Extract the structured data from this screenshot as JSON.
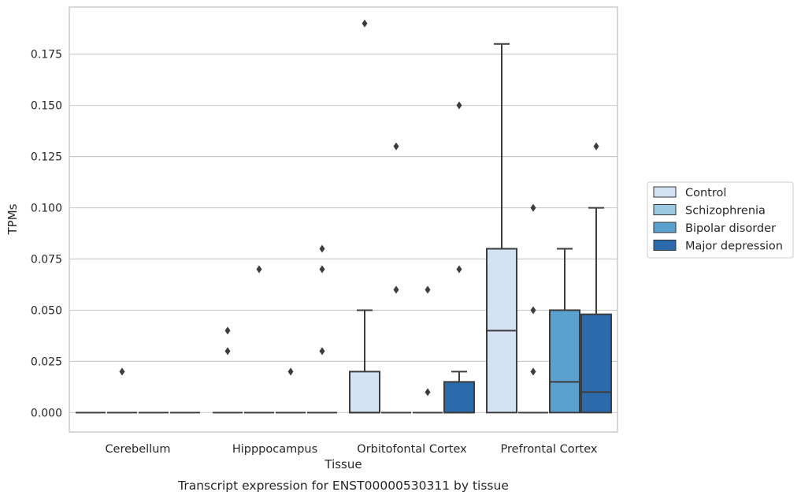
{
  "chart_data": {
    "type": "box",
    "caption": "Transcript expression for ENST00000530311 by tissue",
    "xlabel": "Tissue",
    "ylabel": "TPMs",
    "ylim": [
      -0.0095,
      0.198
    ],
    "yticks": [
      0.0,
      0.025,
      0.05,
      0.075,
      0.1,
      0.125,
      0.15,
      0.175
    ],
    "ytick_labels": [
      "0.000",
      "0.025",
      "0.050",
      "0.075",
      "0.100",
      "0.125",
      "0.150",
      "0.175"
    ],
    "grid": "horizontal",
    "legend_position": "right",
    "categories": [
      "Cerebellum",
      "Hipppocampus",
      "Orbitofontal Cortex",
      "Prefrontal Cortex"
    ],
    "series": [
      {
        "name": "Control",
        "color": "#d4e3f3",
        "boxes": [
          {
            "category": "Cerebellum",
            "q1": 0,
            "median": 0,
            "q3": 0,
            "whisker_low": 0,
            "whisker_high": 0,
            "outliers": []
          },
          {
            "category": "Hipppocampus",
            "q1": 0,
            "median": 0,
            "q3": 0,
            "whisker_low": 0,
            "whisker_high": 0,
            "outliers": [
              0.03,
              0.04
            ]
          },
          {
            "category": "Orbitofontal Cortex",
            "q1": 0,
            "median": 0,
            "q3": 0.02,
            "whisker_low": 0,
            "whisker_high": 0.05,
            "outliers": [
              0.19
            ]
          },
          {
            "category": "Prefrontal Cortex",
            "q1": 0,
            "median": 0.04,
            "q3": 0.08,
            "whisker_low": 0,
            "whisker_high": 0.18,
            "outliers": []
          }
        ]
      },
      {
        "name": "Schizophrenia",
        "color": "#9ac8e0",
        "boxes": [
          {
            "category": "Cerebellum",
            "q1": 0,
            "median": 0,
            "q3": 0,
            "whisker_low": 0,
            "whisker_high": 0,
            "outliers": [
              0.02
            ]
          },
          {
            "category": "Hipppocampus",
            "q1": 0,
            "median": 0,
            "q3": 0,
            "whisker_low": 0,
            "whisker_high": 0,
            "outliers": [
              0.07
            ]
          },
          {
            "category": "Orbitofontal Cortex",
            "q1": 0,
            "median": 0,
            "q3": 0,
            "whisker_low": 0,
            "whisker_high": 0,
            "outliers": [
              0.06,
              0.13
            ]
          },
          {
            "category": "Prefrontal Cortex",
            "q1": 0,
            "median": 0,
            "q3": 0,
            "whisker_low": 0,
            "whisker_high": 0,
            "outliers": [
              0.02,
              0.05,
              0.1
            ]
          }
        ]
      },
      {
        "name": "Bipolar disorder",
        "color": "#5aa1cf",
        "boxes": [
          {
            "category": "Cerebellum",
            "q1": 0,
            "median": 0,
            "q3": 0,
            "whisker_low": 0,
            "whisker_high": 0,
            "outliers": []
          },
          {
            "category": "Hipppocampus",
            "q1": 0,
            "median": 0,
            "q3": 0,
            "whisker_low": 0,
            "whisker_high": 0,
            "outliers": [
              0.02
            ]
          },
          {
            "category": "Orbitofontal Cortex",
            "q1": 0,
            "median": 0,
            "q3": 0,
            "whisker_low": 0,
            "whisker_high": 0,
            "outliers": [
              0.01,
              0.06
            ]
          },
          {
            "category": "Prefrontal Cortex",
            "q1": 0,
            "median": 0.015,
            "q3": 0.05,
            "whisker_low": 0,
            "whisker_high": 0.08,
            "outliers": []
          }
        ]
      },
      {
        "name": "Major depression",
        "color": "#2b6aab",
        "boxes": [
          {
            "category": "Cerebellum",
            "q1": 0,
            "median": 0,
            "q3": 0,
            "whisker_low": 0,
            "whisker_high": 0,
            "outliers": []
          },
          {
            "category": "Hipppocampus",
            "q1": 0,
            "median": 0,
            "q3": 0,
            "whisker_low": 0,
            "whisker_high": 0,
            "outliers": [
              0.03,
              0.07,
              0.08
            ]
          },
          {
            "category": "Orbitofontal Cortex",
            "q1": 0,
            "median": 0,
            "q3": 0.015,
            "whisker_low": 0,
            "whisker_high": 0.02,
            "outliers": [
              0.07,
              0.15
            ]
          },
          {
            "category": "Prefrontal Cortex",
            "q1": 0,
            "median": 0.01,
            "q3": 0.048,
            "whisker_low": 0,
            "whisker_high": 0.1,
            "outliers": [
              0.13
            ]
          }
        ]
      }
    ]
  }
}
